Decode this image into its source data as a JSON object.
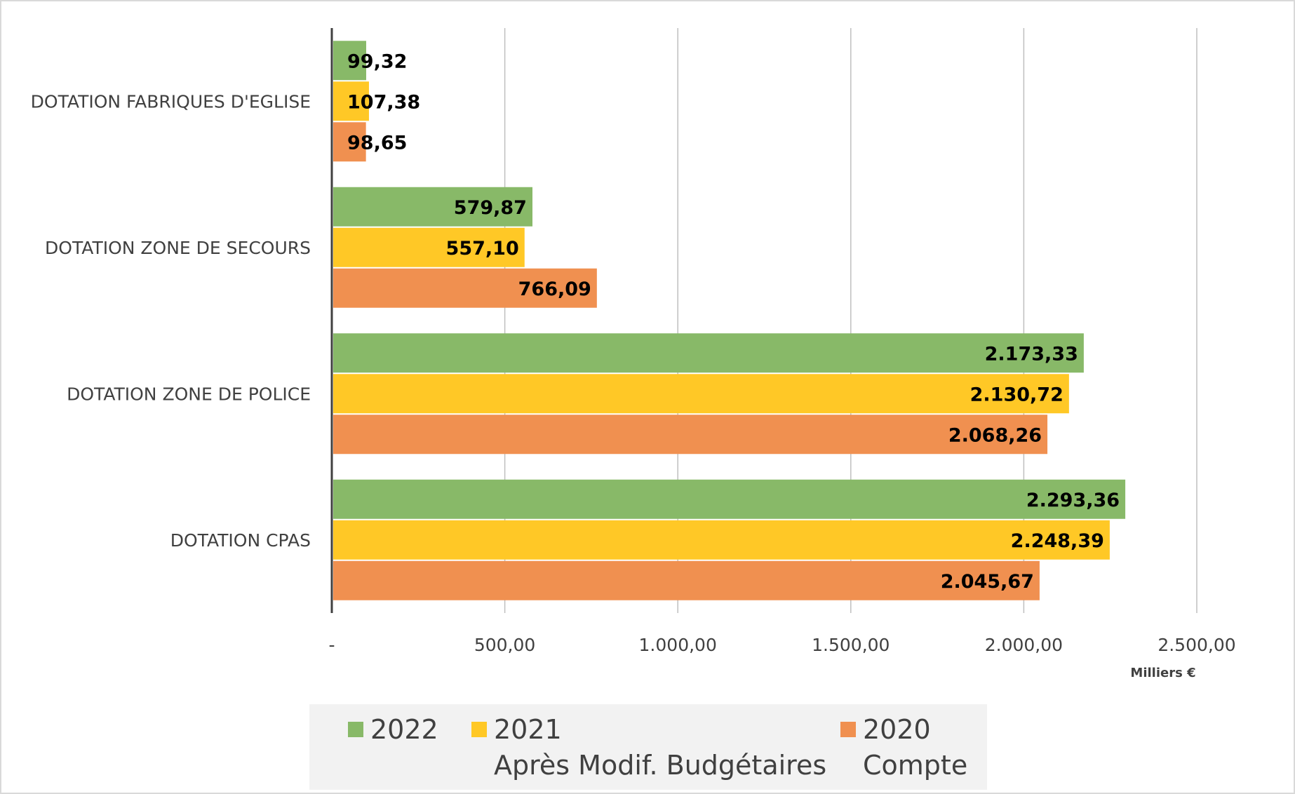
{
  "chart_data": {
    "type": "bar",
    "orientation": "horizontal",
    "categories": [
      "DOTATION FABRIQUES D'EGLISE",
      "DOTATION ZONE DE SECOURS",
      "DOTATION ZONE DE POLICE",
      "DOTATION CPAS"
    ],
    "series": [
      {
        "name": "2022",
        "color": "#88b968",
        "values": [
          99.32,
          579.87,
          2173.33,
          2293.36
        ],
        "labels": [
          "99,32",
          "579,87",
          "2.173,33",
          "2.293,36"
        ]
      },
      {
        "name": "2021\nAprès Modif. Budgétaires",
        "name_line1": "2021",
        "name_line2": "Après Modif. Budgétaires",
        "color": "#ffc826",
        "values": [
          107.38,
          557.1,
          2130.72,
          2248.39
        ],
        "labels": [
          "107,38",
          "557,10",
          "2.130,72",
          "2.248,39"
        ]
      },
      {
        "name": "2020\nCompte",
        "name_line1": "2020",
        "name_line2": "Compte",
        "color": "#f09050",
        "values": [
          98.65,
          766.09,
          2068.26,
          2045.67
        ],
        "labels": [
          "98,65",
          "766,09",
          "2.068,26",
          "2.045,67"
        ]
      }
    ],
    "xlim": [
      0,
      2500
    ],
    "xticks": [
      0,
      500,
      1000,
      1500,
      2000,
      2500
    ],
    "xtick_labels": [
      "-",
      "500,00",
      "1.000,00",
      "1.500,00",
      "2.000,00",
      "2.500,00"
    ],
    "xlabel": "Milliers €",
    "grid": true,
    "legend_position": "bottom"
  }
}
